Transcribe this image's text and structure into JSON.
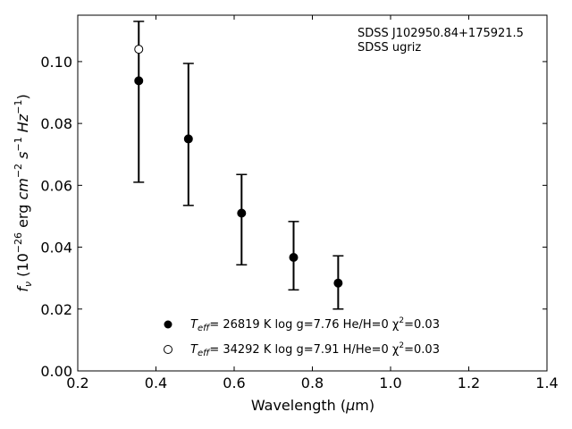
{
  "chart_data": {
    "type": "scatter",
    "title": "",
    "xlabel": "Wavelength (μm)",
    "ylabel": "fν (10⁻²⁶ erg cm⁻² s⁻¹ Hz⁻¹)",
    "xlim": [
      0.2,
      1.4
    ],
    "ylim": [
      0.0,
      0.115
    ],
    "xticks": [
      0.2,
      0.4,
      0.6,
      0.8,
      1.0,
      1.2,
      1.4
    ],
    "xtick_labels": [
      "0.2",
      "0.4",
      "0.6",
      "0.8",
      "1.0",
      "1.2",
      "1.4"
    ],
    "yticks": [
      0.0,
      0.02,
      0.04,
      0.06,
      0.08,
      0.1
    ],
    "ytick_labels": [
      "0.00",
      "0.02",
      "0.04",
      "0.06",
      "0.08",
      "0.10"
    ],
    "grid": false,
    "legend_position": "bottom-center",
    "annotation": [
      "SDSS J102950.84+175921.5",
      "SDSS ugriz"
    ],
    "observed": {
      "x": [
        0.356,
        0.483,
        0.619,
        0.752,
        0.866
      ],
      "y": [
        0.0938,
        0.075,
        0.051,
        0.0367,
        0.0284
      ],
      "yerr_low": [
        0.061,
        0.0535,
        0.0343,
        0.0262,
        0.02
      ],
      "yerr_high": [
        0.113,
        0.0994,
        0.0635,
        0.0483,
        0.0372
      ]
    },
    "series": [
      {
        "name": "Teff= 26819 K log g=7.76 He/H=0 χ²=0.03",
        "marker": "filled-circle",
        "x": [
          0.356,
          0.483,
          0.619,
          0.752,
          0.866
        ],
        "y": [
          0.0938,
          0.075,
          0.051,
          0.0367,
          0.0284
        ]
      },
      {
        "name": "Teff= 34292 K log g=7.91 H/He=0 χ²=0.03",
        "marker": "open-circle",
        "x": [
          0.356
        ],
        "y": [
          0.104
        ]
      }
    ],
    "legend": [
      {
        "teff_label": "T",
        "teff_sub": "eff",
        "text": "= 26819 K  log g=7.76  He/H=0  χ",
        "sup": "2",
        "tail": "=0.03"
      },
      {
        "teff_label": "T",
        "teff_sub": "eff",
        "text": "= 34292 K  log g=7.91  H/He=0  χ",
        "sup": "2",
        "tail": "=0.03"
      }
    ],
    "colors": {
      "marker": "#000000",
      "axis": "#000000",
      "background": "#ffffff"
    }
  }
}
